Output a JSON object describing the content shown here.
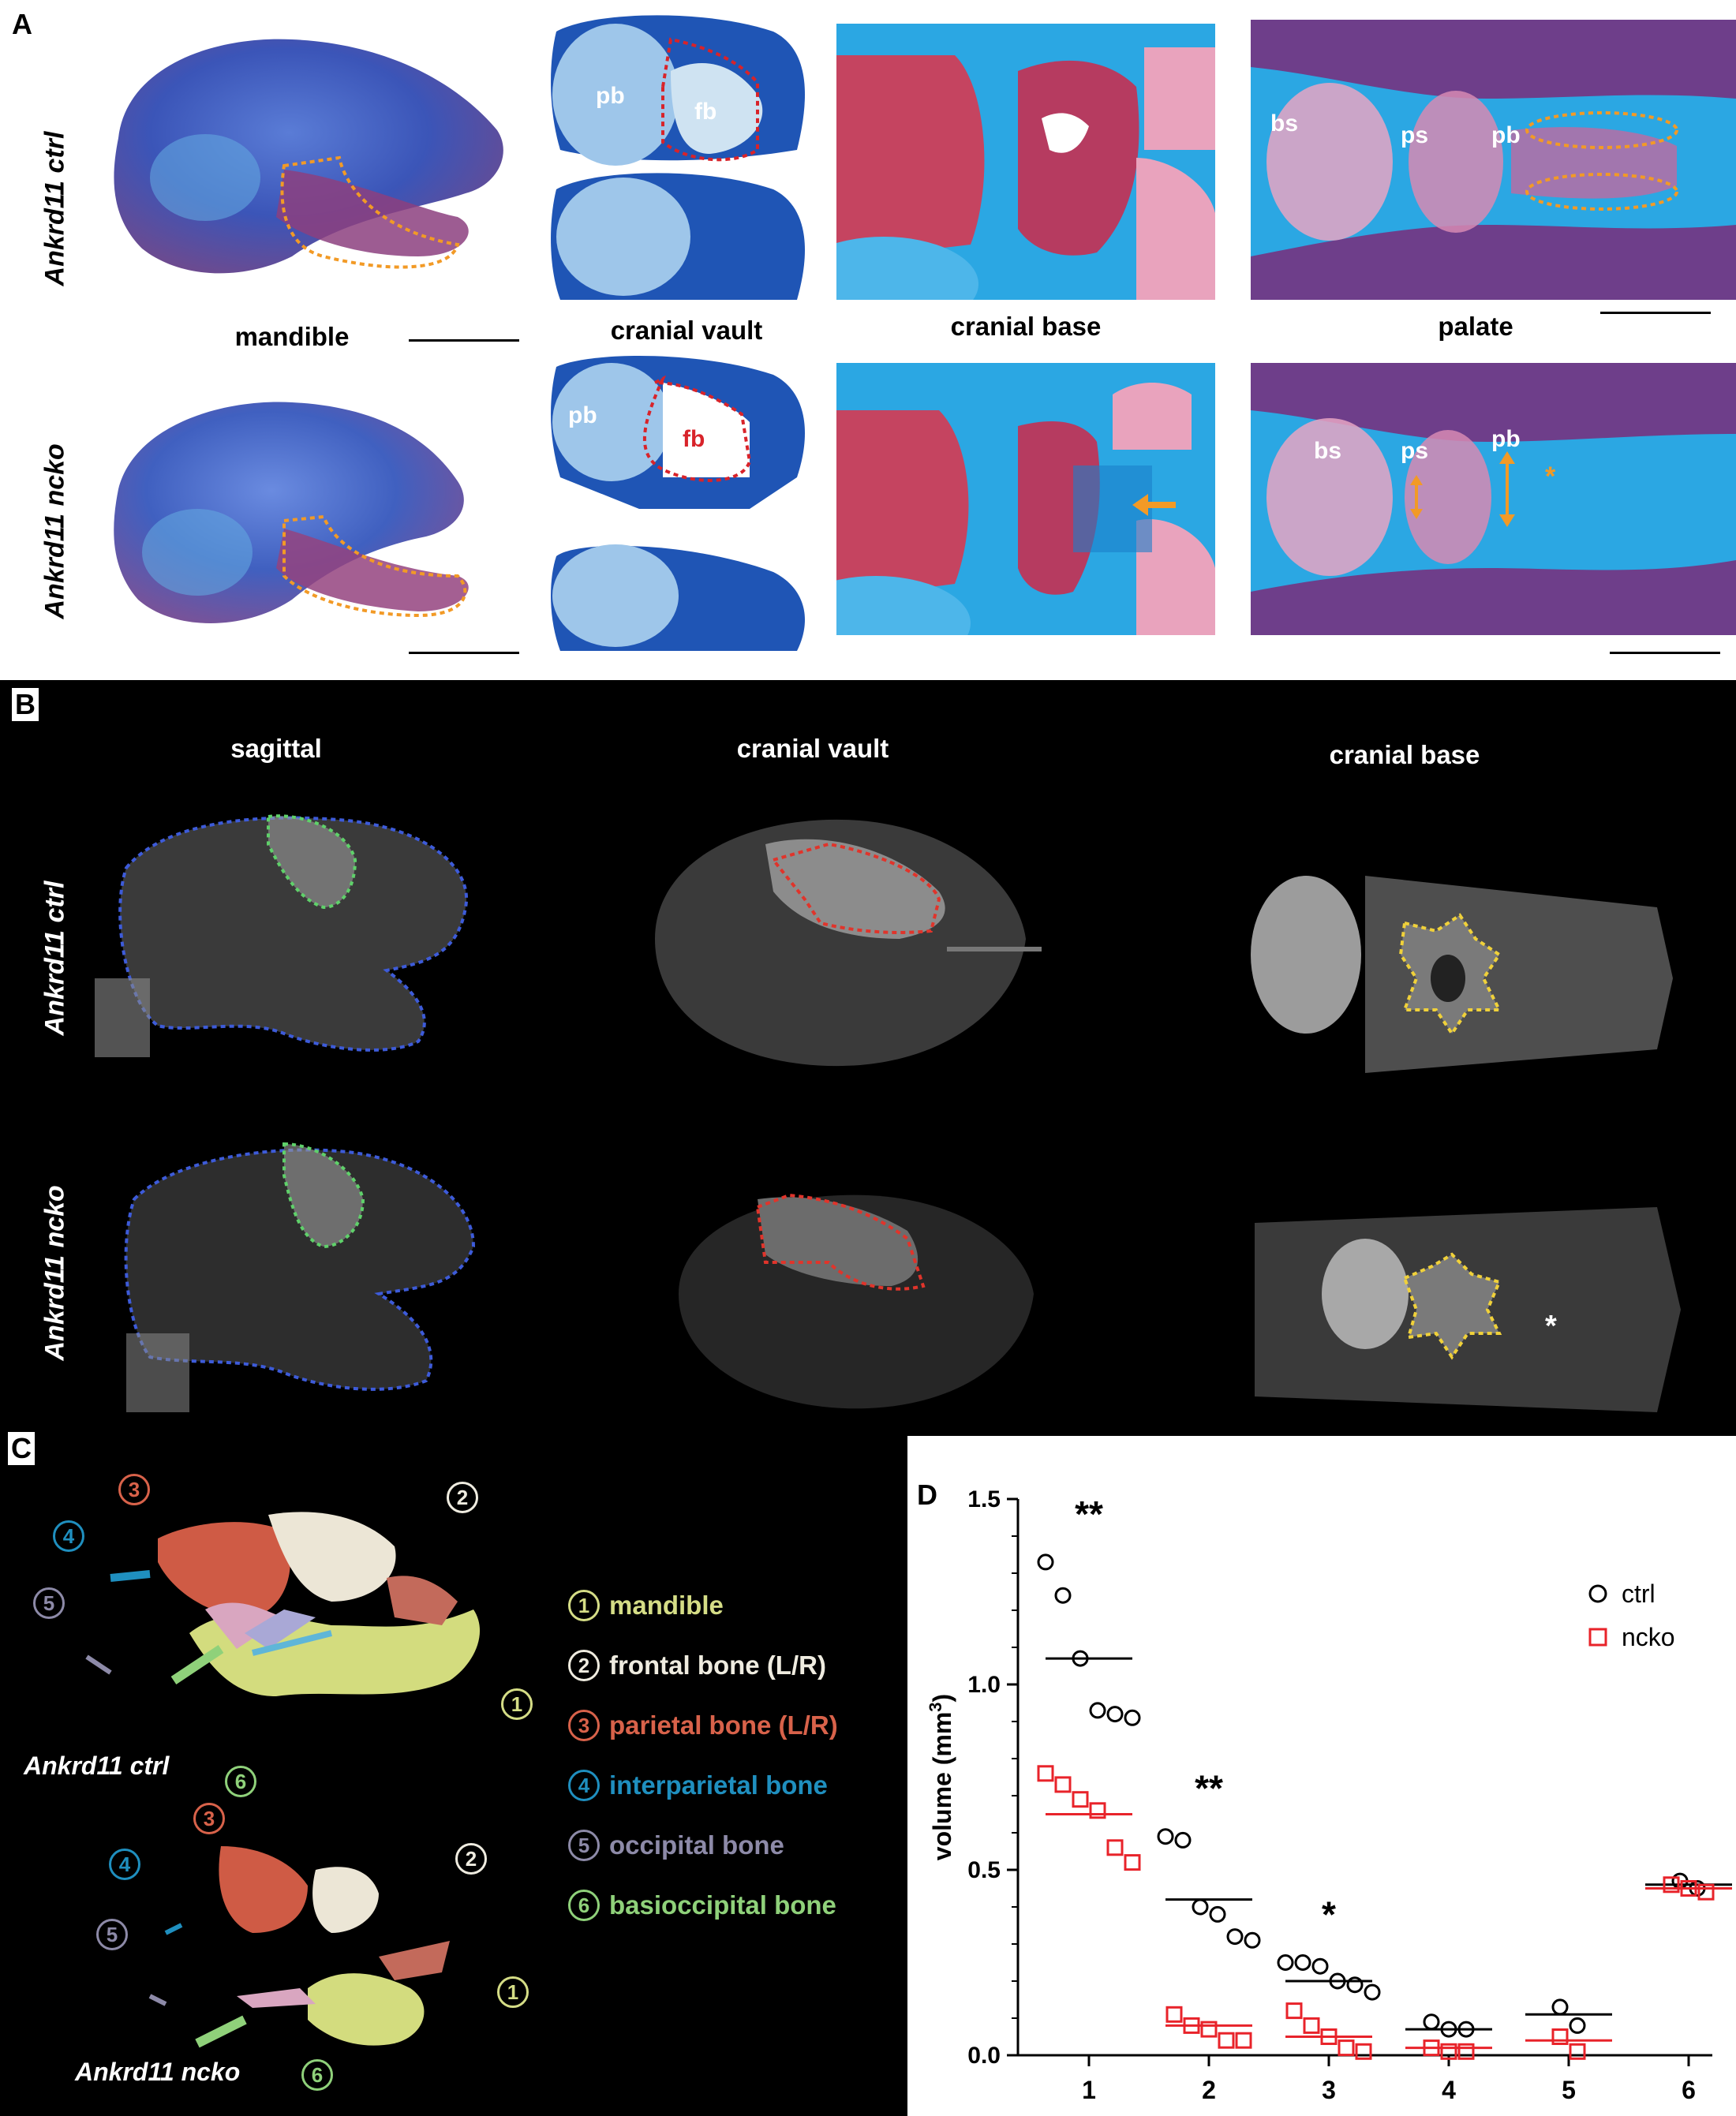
{
  "panel_a": {
    "letter": "A",
    "row_labels": [
      "Ankrd11 ctrl",
      "Ankrd11 ncko"
    ],
    "column_labels": [
      "mandible",
      "cranial vault",
      "cranial base",
      "palate"
    ],
    "annotations": {
      "pb": "pb",
      "fb": "fb",
      "bs": "bs",
      "ps": "ps",
      "star": "*"
    }
  },
  "panel_b": {
    "letter": "B",
    "row_labels": [
      "Ankrd11 ctrl",
      "Ankrd11 ncko"
    ],
    "column_labels": [
      "sagittal",
      "cranial vault",
      "cranial base"
    ],
    "star": "*"
  },
  "panel_c": {
    "letter": "C",
    "specimen_labels": [
      "Ankrd11 ctrl",
      "Ankrd11 ncko"
    ],
    "legend": [
      {
        "num": "1",
        "label": "mandible",
        "color": "#d5dd86"
      },
      {
        "num": "2",
        "label": "frontal bone (L/R)",
        "color": "#efece0"
      },
      {
        "num": "3",
        "label": "parietal bone (L/R)",
        "color": "#d8624a"
      },
      {
        "num": "4",
        "label": "interparietal bone",
        "color": "#1f8fbf"
      },
      {
        "num": "5",
        "label": "occipital bone",
        "color": "#8d8aa8"
      },
      {
        "num": "6",
        "label": "basioccipital bone",
        "color": "#8fd17a"
      }
    ],
    "callouts": [
      "1",
      "2",
      "3",
      "4",
      "5",
      "6",
      "1",
      "2",
      "3",
      "4",
      "5",
      "6"
    ]
  },
  "panel_d": {
    "letter": "D",
    "chart_data": {
      "type": "scatter",
      "ylabel": "volume (mm3)",
      "ylabel_base": "volume (mm",
      "ylabel_sup": "3",
      "ylabel_end": ")",
      "ylim": [
        0,
        1.5
      ],
      "yticks": [
        "0.0",
        "0.5",
        "1.0",
        "1.5"
      ],
      "categories": [
        "1",
        "2",
        "3",
        "4",
        "5",
        "6"
      ],
      "significance": [
        "**",
        "**",
        "*",
        "",
        "",
        ""
      ],
      "series": [
        {
          "name": "ctrl",
          "color": "#000000",
          "marker": "circle",
          "points": [
            [
              1.33,
              1.24,
              1.07,
              0.93,
              0.92,
              0.91
            ],
            [
              0.59,
              0.58,
              0.4,
              0.38,
              0.32,
              0.31
            ],
            [
              0.25,
              0.25,
              0.24,
              0.2,
              0.19,
              0.17
            ],
            [
              0.09,
              0.07,
              0.07
            ],
            [
              0.13,
              0.08
            ],
            [
              0.47,
              0.45
            ]
          ],
          "means": [
            1.07,
            0.42,
            0.2,
            0.07,
            0.11,
            0.46
          ]
        },
        {
          "name": "ncko",
          "color": "#e8232a",
          "marker": "square",
          "points": [
            [
              0.76,
              0.73,
              0.69,
              0.66,
              0.56,
              0.52
            ],
            [
              0.11,
              0.08,
              0.07,
              0.04,
              0.04
            ],
            [
              0.12,
              0.08,
              0.05,
              0.02,
              0.01
            ],
            [
              0.02,
              0.01,
              0.01
            ],
            [
              0.05,
              0.01
            ],
            [
              0.46,
              0.45,
              0.44
            ]
          ],
          "means": [
            0.65,
            0.08,
            0.05,
            0.02,
            0.04,
            0.45
          ]
        }
      ]
    }
  }
}
